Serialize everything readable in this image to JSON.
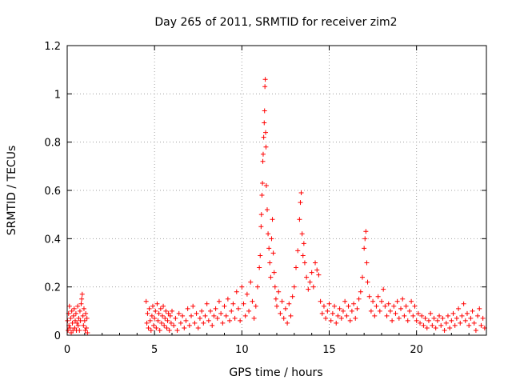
{
  "chart_data": {
    "type": "scatter",
    "title": "Day 265 of 2011, SRMTID for receiver zim2",
    "xlabel": "GPS time / hours",
    "ylabel": "SRMTID / TECUs",
    "xlim": [
      0,
      24
    ],
    "ylim": [
      0,
      1.2
    ],
    "xticks": [
      0,
      5,
      10,
      15,
      20
    ],
    "xtick_labels": [
      "0",
      "5",
      "10",
      "15",
      "20"
    ],
    "yticks": [
      0,
      0.2,
      0.4,
      0.6,
      0.8,
      1,
      1.2
    ],
    "ytick_labels": [
      "0",
      "0.2",
      "0.4",
      "0.6",
      "0.8",
      "1",
      "1.2"
    ],
    "grid": true,
    "marker": "+",
    "series_color": "#ff0000",
    "series": [
      {
        "name": "SRMTID zim2",
        "points": [
          [
            0.02,
            0.06
          ],
          [
            0.05,
            0.02
          ],
          [
            0.08,
            0.09
          ],
          [
            0.1,
            0.04
          ],
          [
            0.13,
            0.12
          ],
          [
            0.16,
            0.03
          ],
          [
            0.2,
            0.07
          ],
          [
            0.23,
            0.01
          ],
          [
            0.26,
            0.1
          ],
          [
            0.3,
            0.05
          ],
          [
            0.33,
            0.02
          ],
          [
            0.36,
            0.08
          ],
          [
            0.4,
            0.11
          ],
          [
            0.43,
            0.03
          ],
          [
            0.46,
            0.06
          ],
          [
            0.5,
            0.09
          ],
          [
            0.53,
            0.02
          ],
          [
            0.56,
            0.05
          ],
          [
            0.6,
            0.12
          ],
          [
            0.63,
            0.04
          ],
          [
            0.66,
            0.07
          ],
          [
            0.7,
            0.02
          ],
          [
            0.73,
            0.1
          ],
          [
            0.76,
            0.06
          ],
          [
            0.8,
            0.13
          ],
          [
            0.83,
            0.15
          ],
          [
            0.86,
            0.17
          ],
          [
            0.9,
            0.08
          ],
          [
            0.93,
            0.04
          ],
          [
            0.96,
            0.11
          ],
          [
            1.0,
            0.06
          ],
          [
            1.03,
            0.02
          ],
          [
            1.06,
            0.09
          ],
          [
            1.1,
            0.03
          ],
          [
            1.13,
            0.07
          ],
          [
            1.16,
            0.01
          ],
          [
            4.52,
            0.14
          ],
          [
            4.56,
            0.05
          ],
          [
            4.6,
            0.09
          ],
          [
            4.65,
            0.03
          ],
          [
            4.7,
            0.11
          ],
          [
            4.75,
            0.06
          ],
          [
            4.8,
            0.02
          ],
          [
            4.85,
            0.08
          ],
          [
            4.9,
            0.12
          ],
          [
            4.95,
            0.04
          ],
          [
            5.0,
            0.07
          ],
          [
            5.05,
            0.1
          ],
          [
            5.1,
            0.03
          ],
          [
            5.15,
            0.13
          ],
          [
            5.2,
            0.06
          ],
          [
            5.25,
            0.09
          ],
          [
            5.3,
            0.02
          ],
          [
            5.35,
            0.11
          ],
          [
            5.4,
            0.05
          ],
          [
            5.45,
            0.08
          ],
          [
            5.5,
            0.12
          ],
          [
            5.55,
            0.04
          ],
          [
            5.6,
            0.07
          ],
          [
            5.65,
            0.1
          ],
          [
            5.7,
            0.03
          ],
          [
            5.75,
            0.06
          ],
          [
            5.8,
            0.09
          ],
          [
            5.85,
            0.02
          ],
          [
            5.9,
            0.08
          ],
          [
            5.95,
            0.05
          ],
          [
            6.0,
            0.1
          ],
          [
            6.1,
            0.04
          ],
          [
            6.2,
            0.07
          ],
          [
            6.3,
            0.02
          ],
          [
            6.4,
            0.09
          ],
          [
            6.5,
            0.05
          ],
          [
            6.6,
            0.08
          ],
          [
            6.7,
            0.03
          ],
          [
            6.8,
            0.06
          ],
          [
            6.9,
            0.11
          ],
          [
            7.0,
            0.04
          ],
          [
            7.1,
            0.08
          ],
          [
            7.2,
            0.12
          ],
          [
            7.3,
            0.05
          ],
          [
            7.4,
            0.09
          ],
          [
            7.5,
            0.03
          ],
          [
            7.6,
            0.07
          ],
          [
            7.7,
            0.1
          ],
          [
            7.8,
            0.05
          ],
          [
            7.9,
            0.08
          ],
          [
            8.0,
            0.13
          ],
          [
            8.1,
            0.06
          ],
          [
            8.2,
            0.1
          ],
          [
            8.3,
            0.04
          ],
          [
            8.4,
            0.08
          ],
          [
            8.5,
            0.11
          ],
          [
            8.6,
            0.07
          ],
          [
            8.7,
            0.14
          ],
          [
            8.8,
            0.09
          ],
          [
            8.9,
            0.05
          ],
          [
            9.0,
            0.12
          ],
          [
            9.1,
            0.08
          ],
          [
            9.2,
            0.15
          ],
          [
            9.3,
            0.06
          ],
          [
            9.4,
            0.1
          ],
          [
            9.5,
            0.13
          ],
          [
            9.6,
            0.07
          ],
          [
            9.7,
            0.18
          ],
          [
            9.8,
            0.11
          ],
          [
            9.9,
            0.06
          ],
          [
            10.0,
            0.2
          ],
          [
            10.1,
            0.13
          ],
          [
            10.2,
            0.08
          ],
          [
            10.3,
            0.17
          ],
          [
            10.4,
            0.1
          ],
          [
            10.5,
            0.22
          ],
          [
            10.6,
            0.14
          ],
          [
            10.7,
            0.07
          ],
          [
            10.8,
            0.12
          ],
          [
            10.9,
            0.2
          ],
          [
            11.0,
            0.28
          ],
          [
            11.05,
            0.33
          ],
          [
            11.1,
            0.45
          ],
          [
            11.12,
            0.5
          ],
          [
            11.15,
            0.58
          ],
          [
            11.18,
            0.63
          ],
          [
            11.2,
            0.72
          ],
          [
            11.22,
            0.75
          ],
          [
            11.25,
            0.82
          ],
          [
            11.28,
            0.88
          ],
          [
            11.3,
            0.93
          ],
          [
            11.32,
            1.03
          ],
          [
            11.34,
            1.06
          ],
          [
            11.36,
            0.84
          ],
          [
            11.38,
            0.78
          ],
          [
            11.4,
            0.62
          ],
          [
            11.45,
            0.52
          ],
          [
            11.5,
            0.42
          ],
          [
            11.55,
            0.36
          ],
          [
            11.6,
            0.3
          ],
          [
            11.65,
            0.24
          ],
          [
            11.7,
            0.4
          ],
          [
            11.75,
            0.48
          ],
          [
            11.8,
            0.34
          ],
          [
            11.85,
            0.26
          ],
          [
            11.9,
            0.2
          ],
          [
            11.95,
            0.15
          ],
          [
            12.0,
            0.12
          ],
          [
            12.1,
            0.18
          ],
          [
            12.2,
            0.09
          ],
          [
            12.3,
            0.14
          ],
          [
            12.4,
            0.07
          ],
          [
            12.5,
            0.11
          ],
          [
            12.6,
            0.05
          ],
          [
            12.7,
            0.13
          ],
          [
            12.8,
            0.08
          ],
          [
            12.9,
            0.16
          ],
          [
            13.0,
            0.2
          ],
          [
            13.1,
            0.28
          ],
          [
            13.2,
            0.35
          ],
          [
            13.3,
            0.48
          ],
          [
            13.35,
            0.55
          ],
          [
            13.4,
            0.59
          ],
          [
            13.45,
            0.42
          ],
          [
            13.5,
            0.33
          ],
          [
            13.55,
            0.38
          ],
          [
            13.6,
            0.3
          ],
          [
            13.7,
            0.24
          ],
          [
            13.8,
            0.19
          ],
          [
            13.9,
            0.22
          ],
          [
            14.0,
            0.26
          ],
          [
            14.1,
            0.2
          ],
          [
            14.2,
            0.3
          ],
          [
            14.3,
            0.27
          ],
          [
            14.4,
            0.25
          ],
          [
            14.5,
            0.14
          ],
          [
            14.6,
            0.09
          ],
          [
            14.7,
            0.12
          ],
          [
            14.8,
            0.07
          ],
          [
            14.9,
            0.1
          ],
          [
            15.0,
            0.13
          ],
          [
            15.1,
            0.06
          ],
          [
            15.2,
            0.09
          ],
          [
            15.3,
            0.12
          ],
          [
            15.4,
            0.05
          ],
          [
            15.5,
            0.08
          ],
          [
            15.6,
            0.11
          ],
          [
            15.7,
            0.07
          ],
          [
            15.8,
            0.1
          ],
          [
            15.9,
            0.14
          ],
          [
            16.0,
            0.08
          ],
          [
            16.1,
            0.12
          ],
          [
            16.2,
            0.06
          ],
          [
            16.3,
            0.1
          ],
          [
            16.4,
            0.13
          ],
          [
            16.5,
            0.07
          ],
          [
            16.6,
            0.11
          ],
          [
            16.7,
            0.15
          ],
          [
            16.8,
            0.18
          ],
          [
            16.9,
            0.24
          ],
          [
            17.0,
            0.36
          ],
          [
            17.05,
            0.4
          ],
          [
            17.1,
            0.43
          ],
          [
            17.15,
            0.3
          ],
          [
            17.2,
            0.22
          ],
          [
            17.3,
            0.16
          ],
          [
            17.4,
            0.1
          ],
          [
            17.5,
            0.14
          ],
          [
            17.6,
            0.08
          ],
          [
            17.7,
            0.12
          ],
          [
            17.8,
            0.16
          ],
          [
            17.9,
            0.1
          ],
          [
            18.0,
            0.14
          ],
          [
            18.1,
            0.19
          ],
          [
            18.2,
            0.12
          ],
          [
            18.3,
            0.08
          ],
          [
            18.4,
            0.13
          ],
          [
            18.5,
            0.1
          ],
          [
            18.6,
            0.06
          ],
          [
            18.7,
            0.12
          ],
          [
            18.8,
            0.09
          ],
          [
            18.9,
            0.14
          ],
          [
            19.0,
            0.07
          ],
          [
            19.1,
            0.11
          ],
          [
            19.2,
            0.15
          ],
          [
            19.3,
            0.08
          ],
          [
            19.4,
            0.12
          ],
          [
            19.5,
            0.06
          ],
          [
            19.6,
            0.1
          ],
          [
            19.7,
            0.14
          ],
          [
            19.8,
            0.08
          ],
          [
            19.9,
            0.12
          ],
          [
            20.0,
            0.06
          ],
          [
            20.1,
            0.09
          ],
          [
            20.2,
            0.05
          ],
          [
            20.3,
            0.08
          ],
          [
            20.4,
            0.04
          ],
          [
            20.5,
            0.07
          ],
          [
            20.6,
            0.03
          ],
          [
            20.7,
            0.06
          ],
          [
            20.8,
            0.09
          ],
          [
            20.9,
            0.04
          ],
          [
            21.0,
            0.07
          ],
          [
            21.1,
            0.03
          ],
          [
            21.2,
            0.06
          ],
          [
            21.3,
            0.08
          ],
          [
            21.4,
            0.04
          ],
          [
            21.5,
            0.07
          ],
          [
            21.6,
            0.02
          ],
          [
            21.7,
            0.05
          ],
          [
            21.8,
            0.08
          ],
          [
            21.9,
            0.03
          ],
          [
            22.0,
            0.06
          ],
          [
            22.1,
            0.09
          ],
          [
            22.2,
            0.04
          ],
          [
            22.3,
            0.07
          ],
          [
            22.4,
            0.11
          ],
          [
            22.5,
            0.05
          ],
          [
            22.6,
            0.08
          ],
          [
            22.7,
            0.13
          ],
          [
            22.8,
            0.06
          ],
          [
            22.9,
            0.09
          ],
          [
            23.0,
            0.04
          ],
          [
            23.1,
            0.07
          ],
          [
            23.2,
            0.1
          ],
          [
            23.3,
            0.05
          ],
          [
            23.4,
            0.02
          ],
          [
            23.5,
            0.08
          ],
          [
            23.6,
            0.11
          ],
          [
            23.7,
            0.04
          ],
          [
            23.8,
            0.07
          ],
          [
            23.9,
            0.03
          ]
        ]
      }
    ]
  }
}
